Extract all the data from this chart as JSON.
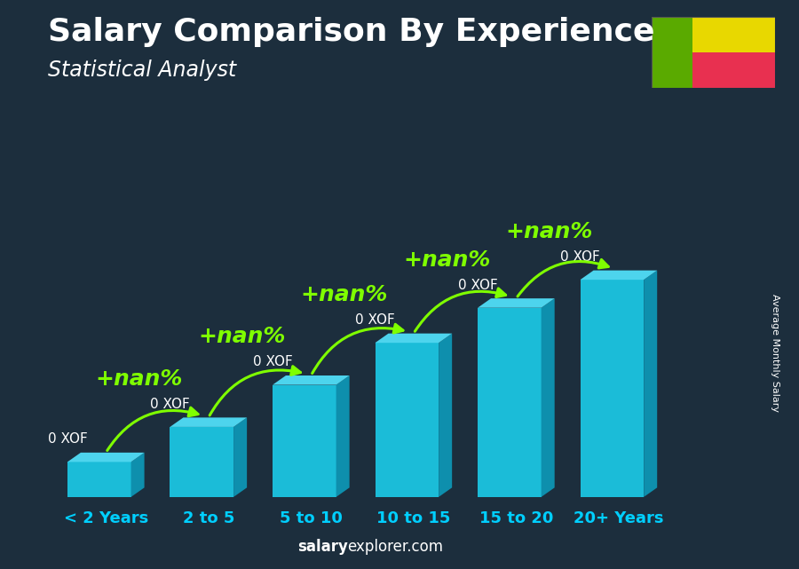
{
  "title": "Salary Comparison By Experience",
  "subtitle": "Statistical Analyst",
  "ylabel": "Average Monthly Salary",
  "watermark_bold": "salary",
  "watermark_normal": "explorer.com",
  "categories": [
    "< 2 Years",
    "2 to 5",
    "5 to 10",
    "10 to 15",
    "15 to 20",
    "20+ Years"
  ],
  "values": [
    1.0,
    2.0,
    3.2,
    4.4,
    5.4,
    6.2
  ],
  "bar_labels": [
    "0 XOF",
    "0 XOF",
    "0 XOF",
    "0 XOF",
    "0 XOF",
    "0 XOF"
  ],
  "pct_labels": [
    "+nan%",
    "+nan%",
    "+nan%",
    "+nan%",
    "+nan%"
  ],
  "pct_color": "#7FFF00",
  "bar_front_color": "#1BBCD8",
  "bar_top_color": "#4DD4ED",
  "bar_side_color": "#0E8FAD",
  "bar_label_color": "#ffffff",
  "cat_label_color": "#00CFFF",
  "bg_color": "#1C2E3D",
  "title_color": "#ffffff",
  "subtitle_color": "#ffffff",
  "title_fontsize": 26,
  "subtitle_fontsize": 17,
  "cat_fontsize": 13,
  "bar_label_fontsize": 11,
  "pct_fontsize": 18,
  "ylabel_fontsize": 8,
  "watermark_fontsize": 12,
  "flag_green": "#5AAA00",
  "flag_yellow": "#E8D800",
  "flag_red": "#E83050"
}
